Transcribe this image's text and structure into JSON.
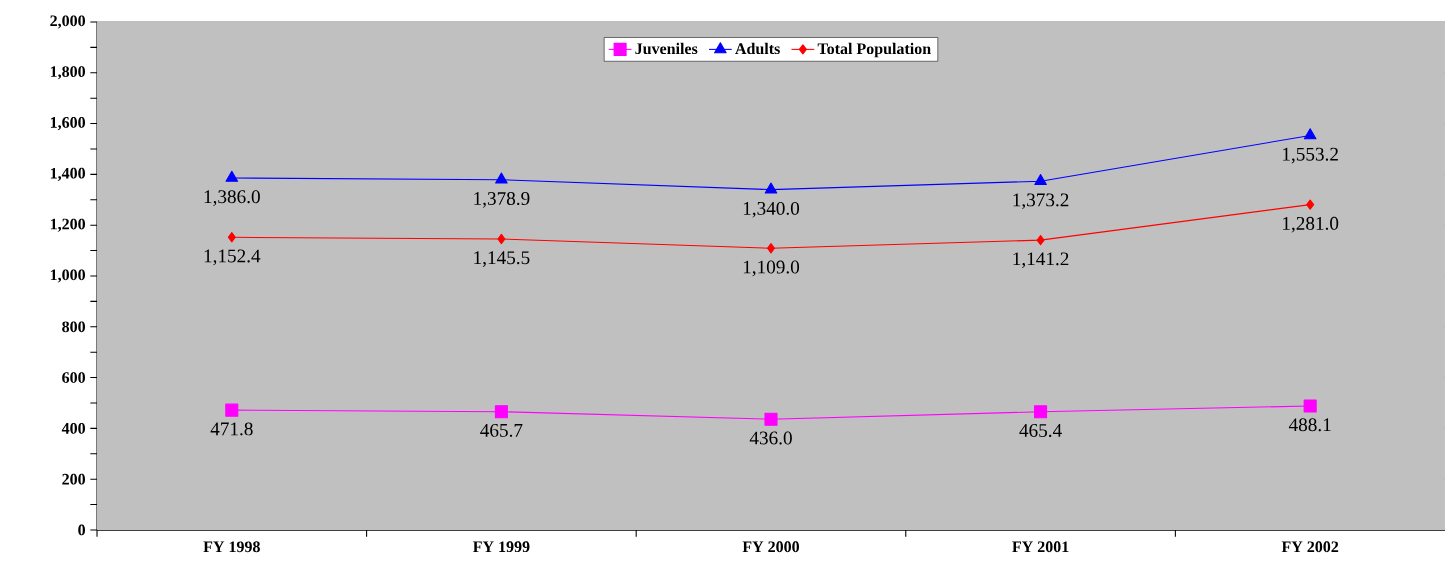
{
  "chart_data": {
    "type": "line",
    "categories": [
      "FY 1998",
      "FY 1999",
      "FY 2000",
      "FY 2001",
      "FY 2002"
    ],
    "series": [
      {
        "name": "Juveniles",
        "color": "#ff00ff",
        "marker": "square",
        "values": [
          471.8,
          465.7,
          436.0,
          465.4,
          488.1
        ],
        "value_labels": [
          "471.8",
          "465.7",
          "436.0",
          "465.4",
          "488.1"
        ]
      },
      {
        "name": "Adults",
        "color": "#0000ff",
        "marker": "triangle",
        "values": [
          1386.0,
          1378.9,
          1340.0,
          1373.2,
          1553.2
        ],
        "value_labels": [
          "1,386.0",
          "1,378.9",
          "1,340.0",
          "1,373.2",
          "1,553.2"
        ]
      },
      {
        "name": "Total Population",
        "color": "#ff0000",
        "marker": "diamond",
        "values": [
          1152.4,
          1145.5,
          1109.0,
          1141.2,
          1281.0
        ],
        "value_labels": [
          "1,152.4",
          "1,145.5",
          "1,109.0",
          "1,141.2",
          "1,281.0"
        ]
      }
    ],
    "ylim": [
      0,
      2000
    ],
    "yticks": [
      {
        "value": 0,
        "label": "0"
      },
      {
        "value": 100,
        "label": null
      },
      {
        "value": 200,
        "label": "200"
      },
      {
        "value": 300,
        "label": null
      },
      {
        "value": 400,
        "label": "400"
      },
      {
        "value": 500,
        "label": null
      },
      {
        "value": 600,
        "label": "600"
      },
      {
        "value": 700,
        "label": null
      },
      {
        "value": 800,
        "label": "800"
      },
      {
        "value": 900,
        "label": null
      },
      {
        "value": 1000,
        "label": "1,000"
      },
      {
        "value": 1100,
        "label": null
      },
      {
        "value": 1200,
        "label": "1,200"
      },
      {
        "value": 1300,
        "label": null
      },
      {
        "value": 1400,
        "label": "1,400"
      },
      {
        "value": 1500,
        "label": null
      },
      {
        "value": 1600,
        "label": "1,600"
      },
      {
        "value": 1700,
        "label": null
      },
      {
        "value": 1800,
        "label": "1,800"
      },
      {
        "value": 1900,
        "label": null
      },
      {
        "value": 2000,
        "label": "2,000"
      }
    ],
    "grid": "y",
    "legend": "top",
    "line_style": "solid"
  }
}
